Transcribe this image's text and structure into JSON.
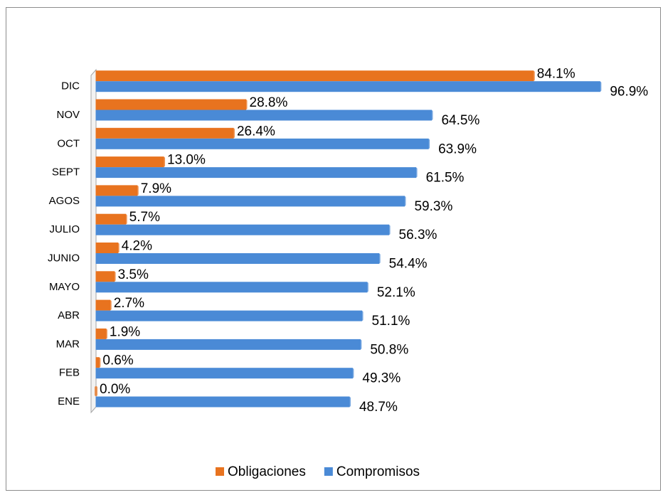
{
  "chart_data": {
    "type": "bar",
    "orientation": "horizontal",
    "categories": [
      "ENE",
      "FEB",
      "MAR",
      "ABR",
      "MAYO",
      "JUNIO",
      "JULIO",
      "AGOS",
      "SEPT",
      "OCT",
      "NOV",
      "DIC"
    ],
    "series": [
      {
        "name": "Obligaciones",
        "color": "#e8731f",
        "values": [
          0.0,
          0.6,
          1.9,
          2.7,
          3.5,
          4.2,
          5.7,
          7.9,
          13.0,
          26.4,
          28.8,
          84.1
        ],
        "value_labels": [
          "0.0%",
          "0.6%",
          "1.9%",
          "2.7%",
          "3.5%",
          "4.2%",
          "5.7%",
          "7.9%",
          "13.0%",
          "26.4%",
          "28.8%",
          "84.1%"
        ]
      },
      {
        "name": "Compromisos",
        "color": "#4a8ad6",
        "values": [
          48.7,
          49.3,
          50.8,
          51.1,
          52.1,
          54.4,
          56.3,
          59.3,
          61.5,
          63.9,
          64.5,
          96.9
        ],
        "value_labels": [
          "48.7%",
          "49.3%",
          "50.8%",
          "51.1%",
          "52.1%",
          "54.4%",
          "56.3%",
          "59.3%",
          "61.5%",
          "63.9%",
          "64.5%",
          "96.9%"
        ]
      }
    ],
    "xlim": [
      0,
      100
    ],
    "legend": "bottom"
  }
}
